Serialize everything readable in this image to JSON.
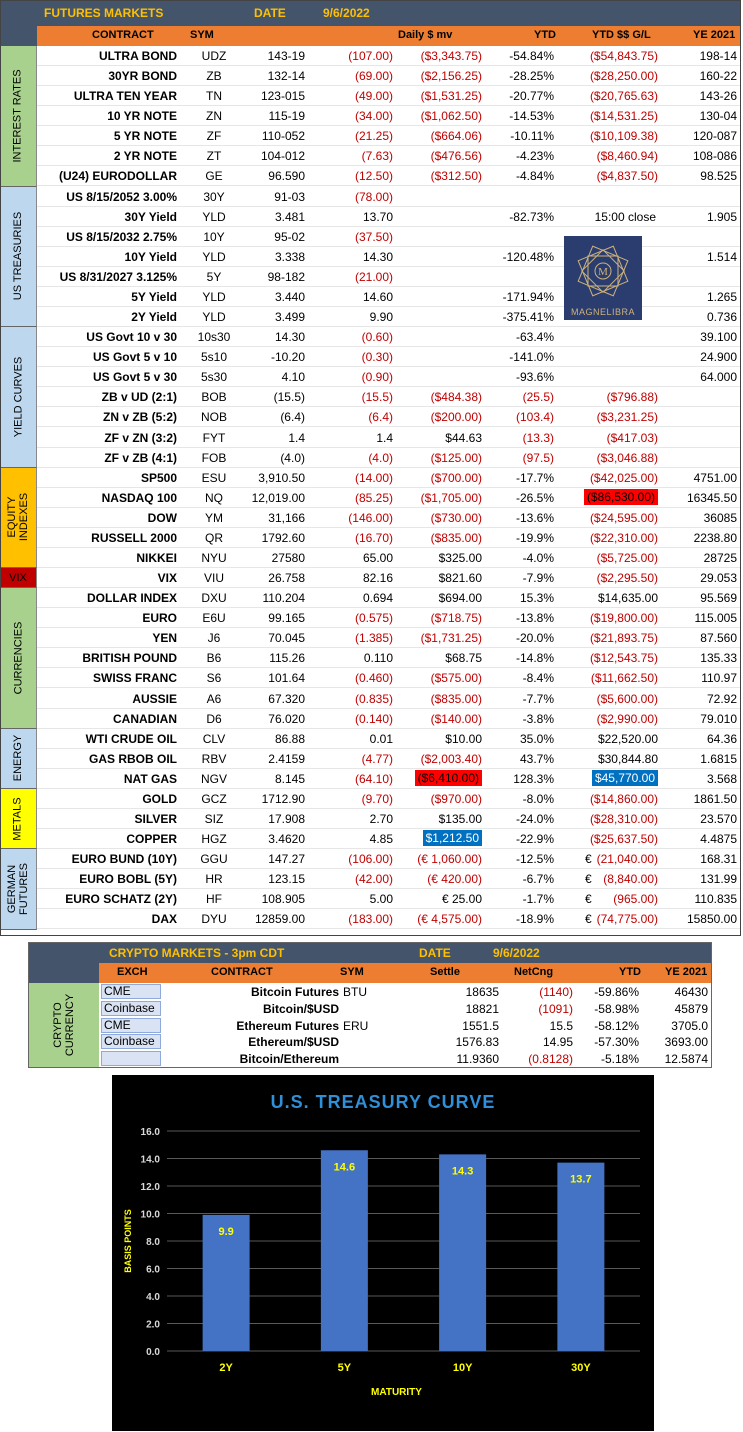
{
  "futures": {
    "title": "FUTURES MARKETS",
    "date_label": "DATE",
    "date": "9/6/2022",
    "columns": {
      "contract": "CONTRACT",
      "sym": "SYM",
      "daily_mv": "Daily $ mv",
      "ytd": "YTD",
      "ytd_gl": "YTD $$ G/L",
      "ye": "YE 2021"
    },
    "sections": [
      {
        "label": "INTEREST RATES",
        "color": "#a9d18e",
        "rows": 7
      },
      {
        "label": "US TREASURIES",
        "color": "#bdd7ee",
        "rows": 7
      },
      {
        "label": "YIELD CURVES",
        "color": "#bdd7ee",
        "rows": 7
      },
      {
        "label": "EQUITY INDEXES",
        "color": "#ffc000",
        "rows": 5
      },
      {
        "label": "VIX",
        "color": "#c00000",
        "rows": 1
      },
      {
        "label": "CURRENCIES",
        "color": "#a9d18e",
        "rows": 7
      },
      {
        "label": "ENERGY",
        "color": "#bdd7ee",
        "rows": 3
      },
      {
        "label": "METALS",
        "color": "#ffff00",
        "rows": 3
      },
      {
        "label": "GERMAN FUTURES",
        "color": "#bdd7ee",
        "rows": 4
      }
    ],
    "rows": [
      {
        "contract": "ULTRA BOND",
        "sym": "UDZ",
        "price": "143-19",
        "chg": "(107.00)",
        "mv": "($3,343.75)",
        "ytd": "-54.84%",
        "gl": "($54,843.75)",
        "ye": "198-14"
      },
      {
        "contract": "30YR BOND",
        "sym": "ZB",
        "price": "132-14",
        "chg": "(69.00)",
        "mv": "($2,156.25)",
        "ytd": "-28.25%",
        "gl": "($28,250.00)",
        "ye": "160-22"
      },
      {
        "contract": "ULTRA TEN YEAR",
        "sym": "TN",
        "price": "123-015",
        "chg": "(49.00)",
        "mv": "($1,531.25)",
        "ytd": "-20.77%",
        "gl": "($20,765.63)",
        "ye": "143-26"
      },
      {
        "contract": "10 YR NOTE",
        "sym": "ZN",
        "price": "115-19",
        "chg": "(34.00)",
        "mv": "($1,062.50)",
        "ytd": "-14.53%",
        "gl": "($14,531.25)",
        "ye": "130-04"
      },
      {
        "contract": "5 YR NOTE",
        "sym": "ZF",
        "price": "110-052",
        "chg": "(21.25)",
        "mv": "($664.06)",
        "ytd": "-10.11%",
        "gl": "($10,109.38)",
        "ye": "120-087"
      },
      {
        "contract": "2 YR NOTE",
        "sym": "ZT",
        "price": "104-012",
        "chg": "(7.63)",
        "mv": "($476.56)",
        "ytd": "-4.23%",
        "gl": "($8,460.94)",
        "ye": "108-086"
      },
      {
        "contract": "(U24) EURODOLLAR",
        "sym": "GE",
        "price": "96.590",
        "chg": "(12.50)",
        "mv": "($312.50)",
        "ytd": "-4.84%",
        "gl": "($4,837.50)",
        "ye": "98.525"
      },
      {
        "contract": "US 8/15/2052 3.00%",
        "sym": "30Y",
        "price": "91-03",
        "chg": "(78.00)",
        "mv": "",
        "ytd": "",
        "gl": "",
        "ye": ""
      },
      {
        "contract": "30Y Yield",
        "sym": "YLD",
        "price": "3.481",
        "chg": "13.70",
        "mv": "",
        "ytd": "-82.73%",
        "gl": "15:00 close",
        "ye": "1.905"
      },
      {
        "contract": "US 8/15/2032 2.75%",
        "sym": "10Y",
        "price": "95-02",
        "chg": "(37.50)",
        "mv": "",
        "ytd": "",
        "gl": "",
        "ye": ""
      },
      {
        "contract": "10Y Yield",
        "sym": "YLD",
        "price": "3.338",
        "chg": "14.30",
        "mv": "",
        "ytd": "-120.48%",
        "gl": "",
        "ye": "1.514"
      },
      {
        "contract": "US 8/31/2027 3.125%",
        "sym": "5Y",
        "price": "98-182",
        "chg": "(21.00)",
        "mv": "",
        "ytd": "",
        "gl": "",
        "ye": ""
      },
      {
        "contract": "5Y Yield",
        "sym": "YLD",
        "price": "3.440",
        "chg": "14.60",
        "mv": "",
        "ytd": "-171.94%",
        "gl": "",
        "ye": "1.265"
      },
      {
        "contract": "2Y Yield",
        "sym": "YLD",
        "price": "3.499",
        "chg": "9.90",
        "mv": "",
        "ytd": "-375.41%",
        "gl": "",
        "ye": "0.736"
      },
      {
        "contract": "US Govt 10 v 30",
        "sym": "10s30",
        "price": "14.30",
        "chg": "(0.60)",
        "mv": "",
        "ytd": "-63.4%",
        "gl": "",
        "ye": "39.100"
      },
      {
        "contract": "US Govt 5 v 10",
        "sym": "5s10",
        "price": "-10.20",
        "chg": "(0.30)",
        "mv": "",
        "ytd": "-141.0%",
        "gl": "",
        "ye": "24.900"
      },
      {
        "contract": "US Govt 5 v 30",
        "sym": "5s30",
        "price": "4.10",
        "chg": "(0.90)",
        "mv": "",
        "ytd": "-93.6%",
        "gl": "",
        "ye": "64.000"
      },
      {
        "contract": "ZB v UD (2:1)",
        "sym": "BOB",
        "price": "(15.5)",
        "chg": "(15.5)",
        "mv": "($484.38)",
        "ytd": "(25.5)",
        "gl": "($796.88)",
        "ye": ""
      },
      {
        "contract": "ZN v ZB (5:2)",
        "sym": "NOB",
        "price": "(6.4)",
        "chg": "(6.4)",
        "mv": "($200.00)",
        "ytd": "(103.4)",
        "gl": "($3,231.25)",
        "ye": ""
      },
      {
        "contract": "ZF v ZN (3:2)",
        "sym": "FYT",
        "price": "1.4",
        "chg": "1.4",
        "mv": "$44.63",
        "ytd": "(13.3)",
        "gl": "($417.03)",
        "ye": ""
      },
      {
        "contract": "ZF v ZB (4:1)",
        "sym": "FOB",
        "price": "(4.0)",
        "chg": "(4.0)",
        "mv": "($125.00)",
        "ytd": "(97.5)",
        "gl": "($3,046.88)",
        "ye": ""
      },
      {
        "contract": "SP500",
        "sym": "ESU",
        "price": "3,910.50",
        "chg": "(14.00)",
        "mv": "($700.00)",
        "ytd": "-17.7%",
        "gl": "($42,025.00)",
        "ye": "4751.00"
      },
      {
        "contract": "NASDAQ 100",
        "sym": "NQ",
        "price": "12,019.00",
        "chg": "(85.25)",
        "mv": "($1,705.00)",
        "ytd": "-26.5%",
        "gl": "($86,530.00)",
        "ye": "16345.50",
        "gl_hl": "red"
      },
      {
        "contract": "DOW",
        "sym": "YM",
        "price": "31,166",
        "chg": "(146.00)",
        "mv": "($730.00)",
        "ytd": "-13.6%",
        "gl": "($24,595.00)",
        "ye": "36085"
      },
      {
        "contract": "RUSSELL 2000",
        "sym": "QR",
        "price": "1792.60",
        "chg": "(16.70)",
        "mv": "($835.00)",
        "ytd": "-19.9%",
        "gl": "($22,310.00)",
        "ye": "2238.80"
      },
      {
        "contract": "NIKKEI",
        "sym": "NYU",
        "price": "27580",
        "chg": "65.00",
        "mv": "$325.00",
        "ytd": "-4.0%",
        "gl": "($5,725.00)",
        "ye": "28725"
      },
      {
        "contract": "VIX",
        "sym": "VIU",
        "price": "26.758",
        "chg": "82.16",
        "mv": "$821.60",
        "ytd": "-7.9%",
        "gl": "($2,295.50)",
        "ye": "29.053"
      },
      {
        "contract": "DOLLAR INDEX",
        "sym": "DXU",
        "price": "110.204",
        "chg": "0.694",
        "mv": "$694.00",
        "ytd": "15.3%",
        "gl": "$14,635.00",
        "ye": "95.569"
      },
      {
        "contract": "EURO",
        "sym": "E6U",
        "price": "99.165",
        "chg": "(0.575)",
        "mv": "($718.75)",
        "ytd": "-13.8%",
        "gl": "($19,800.00)",
        "ye": "115.005"
      },
      {
        "contract": "YEN",
        "sym": "J6",
        "price": "70.045",
        "chg": "(1.385)",
        "mv": "($1,731.25)",
        "ytd": "-20.0%",
        "gl": "($21,893.75)",
        "ye": "87.560"
      },
      {
        "contract": "BRITISH POUND",
        "sym": "B6",
        "price": "115.26",
        "chg": "0.110",
        "mv": "$68.75",
        "ytd": "-14.8%",
        "gl": "($12,543.75)",
        "ye": "135.33"
      },
      {
        "contract": "SWISS FRANC",
        "sym": "S6",
        "price": "101.64",
        "chg": "(0.460)",
        "mv": "($575.00)",
        "ytd": "-8.4%",
        "gl": "($11,662.50)",
        "ye": "110.97"
      },
      {
        "contract": "AUSSIE",
        "sym": "A6",
        "price": "67.320",
        "chg": "(0.835)",
        "mv": "($835.00)",
        "ytd": "-7.7%",
        "gl": "($5,600.00)",
        "ye": "72.92"
      },
      {
        "contract": "CANADIAN",
        "sym": "D6",
        "price": "76.020",
        "chg": "(0.140)",
        "mv": "($140.00)",
        "ytd": "-3.8%",
        "gl": "($2,990.00)",
        "ye": "79.010"
      },
      {
        "contract": "WTI CRUDE OIL",
        "sym": "CLV",
        "price": "86.88",
        "chg": "0.01",
        "mv": "$10.00",
        "ytd": "35.0%",
        "gl": "$22,520.00",
        "ye": "64.36"
      },
      {
        "contract": "GAS RBOB OIL",
        "sym": "RBV",
        "price": "2.4159",
        "chg": "(4.77)",
        "mv": "($2,003.40)",
        "ytd": "43.7%",
        "gl": "$30,844.80",
        "ye": "1.6815"
      },
      {
        "contract": "NAT GAS",
        "sym": "NGV",
        "price": "8.145",
        "chg": "(64.10)",
        "mv": "($6,410.00)",
        "ytd": "128.3%",
        "gl": "$45,770.00",
        "ye": "3.568",
        "mv_hl": "red",
        "gl_hl": "blue"
      },
      {
        "contract": "GOLD",
        "sym": "GCZ",
        "price": "1712.90",
        "chg": "(9.70)",
        "mv": "($970.00)",
        "ytd": "-8.0%",
        "gl": "($14,860.00)",
        "ye": "1861.50"
      },
      {
        "contract": "SILVER",
        "sym": "SIZ",
        "price": "17.908",
        "chg": "2.70",
        "mv": "$135.00",
        "ytd": "-24.0%",
        "gl": "($28,310.00)",
        "ye": "23.570"
      },
      {
        "contract": "COPPER",
        "sym": "HGZ",
        "price": "3.4620",
        "chg": "4.85",
        "mv": "$1,212.50",
        "ytd": "-22.9%",
        "gl": "($25,637.50)",
        "ye": "4.4875",
        "mv_hl": "blue"
      },
      {
        "contract": "EURO BUND (10Y)",
        "sym": "GGU",
        "price": "147.27",
        "chg": "(106.00)",
        "mv": "(€ 1,060.00)",
        "ytd": "-12.5%",
        "gl": "(21,040.00)",
        "ye": "168.31",
        "euro": "€"
      },
      {
        "contract": "EURO BOBL (5Y)",
        "sym": "HR",
        "price": "123.15",
        "chg": "(42.00)",
        "mv": "(€ 420.00)",
        "ytd": "-6.7%",
        "gl": "(8,840.00)",
        "ye": "131.99",
        "euro": "€"
      },
      {
        "contract": "EURO SCHATZ (2Y)",
        "sym": "HF",
        "price": "108.905",
        "chg": "5.00",
        "mv": "€ 25.00",
        "ytd": "-1.7%",
        "gl": "(965.00)",
        "ye": "110.835",
        "euro": "€"
      },
      {
        "contract": "DAX",
        "sym": "DYU",
        "price": "12859.00",
        "chg": "(183.00)",
        "mv": "(€ 4,575.00)",
        "ytd": "-18.9%",
        "gl": "(74,775.00)",
        "ye": "15850.00",
        "euro": "€"
      }
    ],
    "logo_text": "MAGNELIBRA"
  },
  "crypto": {
    "title": "CRYPTO MARKETS - 3pm CDT",
    "date_label": "DATE",
    "date": "9/6/2022",
    "section_label": "CRYPTO CURRENCY",
    "columns": {
      "exch": "EXCH",
      "contract": "CONTRACT",
      "sym": "SYM",
      "settle": "Settle",
      "netchg": "NetCng",
      "ytd": "YTD",
      "ye": "YE 2021"
    },
    "rows": [
      {
        "exch": "CME",
        "contract": "Bitcoin Futures",
        "sym": "BTU",
        "settle": "18635",
        "netchg": "(1140)",
        "ytd": "-59.86%",
        "ye": "46430"
      },
      {
        "exch": "Coinbase",
        "contract": "Bitcoin/$USD",
        "sym": "",
        "settle": "18821",
        "netchg": "(1091)",
        "ytd": "-58.98%",
        "ye": "45879"
      },
      {
        "exch": "CME",
        "contract": "Ethereum Futures",
        "sym": "ERU",
        "settle": "1551.5",
        "netchg": "15.5",
        "ytd": "-58.12%",
        "ye": "3705.0"
      },
      {
        "exch": "Coinbase",
        "contract": "Ethereum/$USD",
        "sym": "",
        "settle": "1576.83",
        "netchg": "14.95",
        "ytd": "-57.30%",
        "ye": "3693.00"
      },
      {
        "exch": "",
        "contract": "Bitcoin/Ethereum",
        "sym": "",
        "settle": "11.9360",
        "netchg": "(0.8128)",
        "ytd": "-5.18%",
        "ye": "12.5874"
      }
    ]
  },
  "chart_data": {
    "type": "bar",
    "title": "U.S. TREASURY CURVE",
    "xlabel": "MATURITY",
    "ylabel": "BASIS POINTS",
    "categories": [
      "2Y",
      "5Y",
      "10Y",
      "30Y"
    ],
    "values": [
      9.9,
      14.6,
      14.3,
      13.7
    ],
    "ylim": [
      0,
      16
    ],
    "yticks": [
      "0.0",
      "2.0",
      "4.0",
      "6.0",
      "8.0",
      "10.0",
      "12.0",
      "14.0",
      "16.0"
    ],
    "grid": true,
    "bar_color": "#4472c4",
    "label_color": "#ffff00",
    "title_color": "#2f8fd8",
    "background": "#000000"
  }
}
